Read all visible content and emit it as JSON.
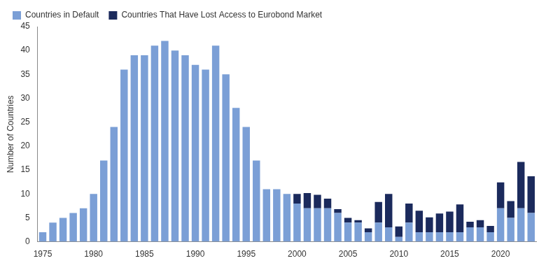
{
  "chart_data": {
    "type": "bar",
    "y_label": "Number of Countries",
    "categories": [
      1975,
      null,
      null,
      null,
      null,
      1980,
      null,
      null,
      null,
      null,
      1985,
      null,
      null,
      null,
      null,
      1990,
      null,
      null,
      null,
      null,
      1995,
      null,
      null,
      null,
      null,
      2000,
      null,
      null,
      null,
      null,
      2005,
      null,
      null,
      null,
      null,
      2010,
      null,
      null,
      null,
      null,
      2015,
      null,
      null,
      null,
      null,
      2020,
      null,
      null,
      null
    ],
    "series": [
      {
        "name": "Countries in Default",
        "color": "#7b9fd6",
        "values": [
          2,
          4,
          5,
          6,
          7,
          10,
          17,
          24,
          36,
          39,
          39,
          41,
          42,
          40,
          39,
          37,
          36,
          41,
          35,
          28,
          24,
          17,
          11,
          11,
          10,
          8,
          7,
          7,
          7,
          6,
          4,
          4,
          2,
          4,
          3,
          1,
          4,
          2,
          2,
          2,
          2,
          2,
          3,
          3,
          2,
          7,
          5,
          7,
          6
        ]
      },
      {
        "name": "Countries That Have Lost Access to Eurobond Market",
        "color": "#1b2a5c",
        "values": [
          null,
          null,
          null,
          null,
          null,
          null,
          null,
          null,
          null,
          null,
          null,
          null,
          null,
          null,
          null,
          null,
          null,
          null,
          null,
          null,
          null,
          null,
          null,
          null,
          null,
          2,
          3.2,
          2.8,
          2,
          0.8,
          1,
          0.5,
          0.8,
          4.3,
          7,
          2.2,
          4,
          4.5,
          3.1,
          3.9,
          4.3,
          5.8,
          1.2,
          1.5,
          1.3,
          5.4,
          3.5,
          9.7,
          7.7
        ]
      }
    ],
    "stacked": true,
    "ylim": [
      0,
      45
    ],
    "yticks": [
      0,
      5,
      10,
      15,
      20,
      25,
      30,
      35,
      40,
      45
    ],
    "grid": false,
    "legend": "top-left"
  }
}
